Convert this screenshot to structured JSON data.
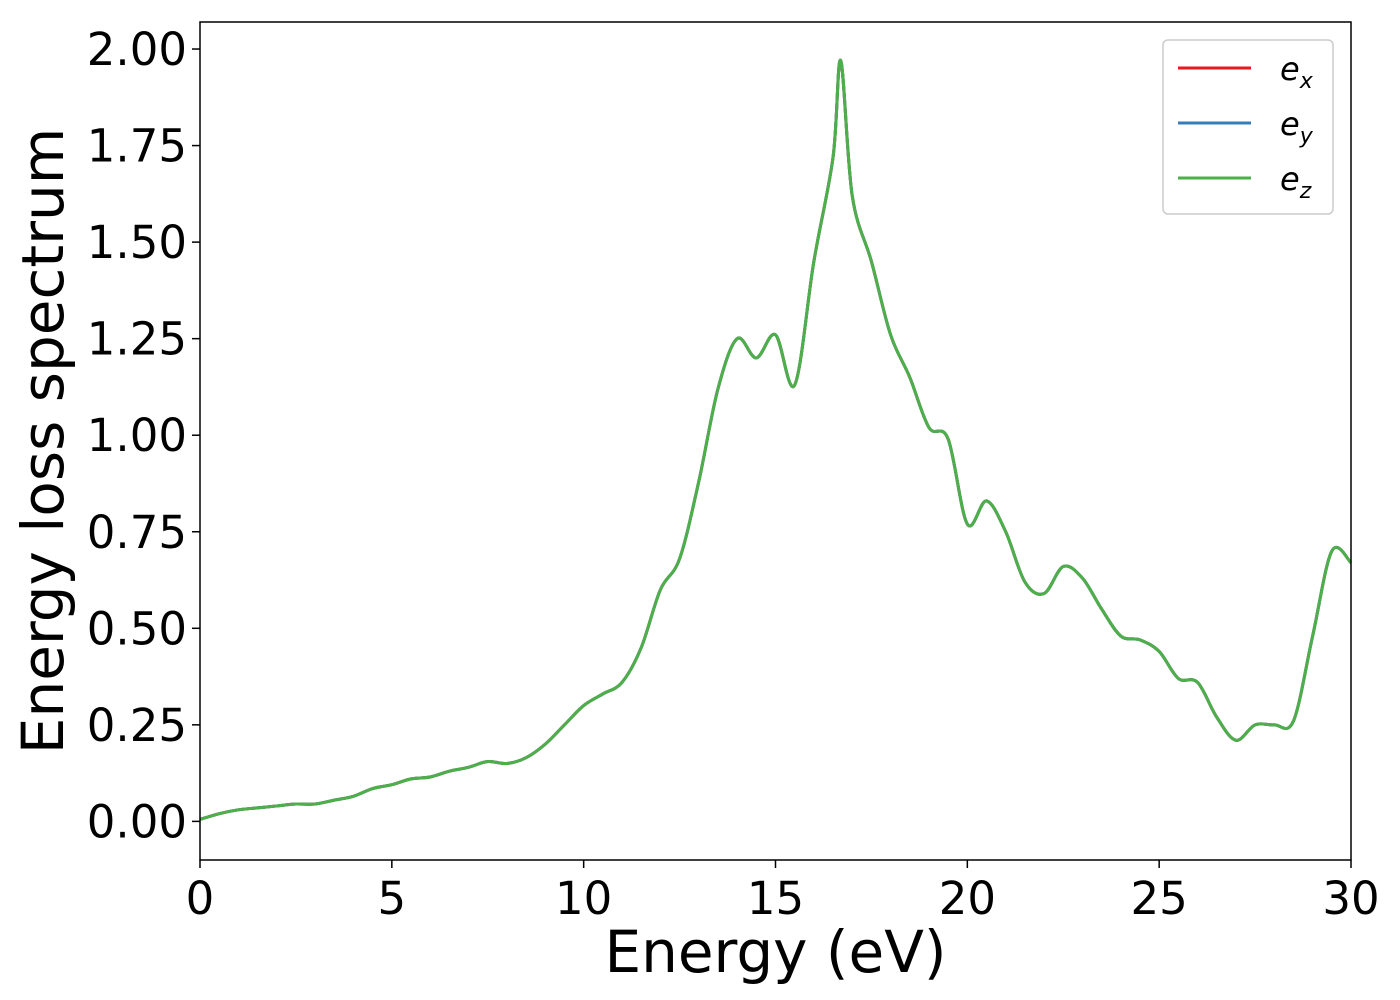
{
  "chart_data": {
    "type": "line",
    "title": "",
    "xlabel": "Energy (eV)",
    "ylabel": "Energy loss spectrum",
    "xlim": [
      0,
      30
    ],
    "ylim": [
      -0.1,
      2.07
    ],
    "x_ticks": [
      0,
      5,
      10,
      15,
      20,
      25,
      30
    ],
    "x_tick_labels": [
      "0",
      "5",
      "10",
      "15",
      "20",
      "25",
      "30"
    ],
    "y_ticks": [
      0.0,
      0.25,
      0.5,
      0.75,
      1.0,
      1.25,
      1.5,
      1.75,
      2.0
    ],
    "y_tick_labels": [
      "0.00",
      "0.25",
      "0.50",
      "0.75",
      "1.00",
      "1.25",
      "1.50",
      "1.75",
      "2.00"
    ],
    "grid": false,
    "legend_position": "top-right",
    "series": [
      {
        "name": "e",
        "sub": "x",
        "color": "#e41a1c"
      },
      {
        "name": "e",
        "sub": "y",
        "color": "#377eb8"
      },
      {
        "name": "e",
        "sub": "z",
        "color": "#4daf4a"
      }
    ],
    "x": [
      0,
      0.5,
      1,
      1.5,
      2,
      2.5,
      3,
      3.5,
      4,
      4.5,
      5,
      5.5,
      6,
      6.5,
      7,
      7.5,
      8,
      8.5,
      9,
      9.5,
      10,
      10.5,
      11,
      11.5,
      12,
      12.5,
      13,
      13.5,
      14,
      14.5,
      15,
      15.5,
      16,
      16.5,
      16.7,
      17,
      17.5,
      18,
      18.5,
      19,
      19.5,
      20,
      20.5,
      21,
      21.5,
      22,
      22.5,
      23,
      23.5,
      24,
      24.5,
      25,
      25.5,
      26,
      26.5,
      27,
      27.5,
      28,
      28.5,
      29,
      29.5,
      30
    ],
    "values": [
      0.005,
      0.02,
      0.03,
      0.035,
      0.04,
      0.045,
      0.045,
      0.055,
      0.065,
      0.085,
      0.095,
      0.11,
      0.115,
      0.13,
      0.14,
      0.155,
      0.15,
      0.165,
      0.2,
      0.25,
      0.3,
      0.33,
      0.36,
      0.45,
      0.6,
      0.68,
      0.88,
      1.12,
      1.25,
      1.2,
      1.26,
      1.13,
      1.45,
      1.72,
      1.97,
      1.62,
      1.45,
      1.26,
      1.15,
      1.02,
      0.99,
      0.77,
      0.83,
      0.75,
      0.62,
      0.59,
      0.66,
      0.63,
      0.55,
      0.48,
      0.47,
      0.44,
      0.37,
      0.36,
      0.27,
      0.21,
      0.25,
      0.25,
      0.26,
      0.48,
      0.7,
      0.67
    ]
  }
}
